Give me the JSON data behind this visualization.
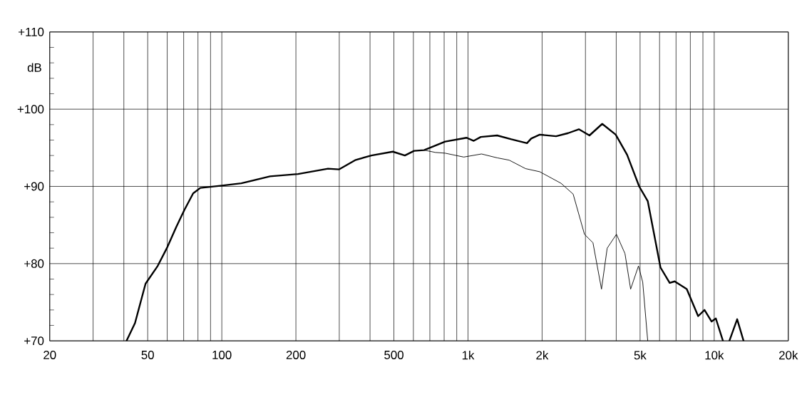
{
  "chart_data": {
    "type": "line",
    "ylabel": "dB",
    "log": "x",
    "grid": true,
    "marker": "none",
    "line_style": "solid",
    "xlim": [
      20,
      20000
    ],
    "ylim": [
      70,
      110
    ],
    "xticks": [
      20,
      {
        "value": 30,
        "label": null
      },
      {
        "value": 40,
        "label": null
      },
      50,
      {
        "value": 60,
        "label": null
      },
      {
        "value": 70,
        "label": null
      },
      {
        "value": 80,
        "label": null
      },
      {
        "value": 90,
        "label": null
      },
      100,
      200,
      {
        "value": 300,
        "label": null
      },
      {
        "value": 400,
        "label": null
      },
      500,
      {
        "value": 600,
        "label": null
      },
      {
        "value": 700,
        "label": null
      },
      {
        "value": 800,
        "label": null
      },
      {
        "value": 900,
        "label": null
      },
      {
        "value": 1000,
        "label": "1k"
      },
      {
        "value": 2000,
        "label": "2k"
      },
      {
        "value": 3000,
        "label": null
      },
      {
        "value": 4000,
        "label": null
      },
      {
        "value": 5000,
        "label": "5k"
      },
      {
        "value": 6000,
        "label": null
      },
      {
        "value": 7000,
        "label": null
      },
      {
        "value": 8000,
        "label": null
      },
      {
        "value": 9000,
        "label": null
      },
      {
        "value": 10000,
        "label": "10k"
      },
      {
        "value": 20000,
        "label": "20k"
      }
    ],
    "yticks": [
      {
        "value": 70,
        "label": "+70"
      },
      {
        "value": 72,
        "label": null
      },
      {
        "value": 74,
        "label": null
      },
      {
        "value": 76,
        "label": null
      },
      {
        "value": 78,
        "label": null
      },
      {
        "value": 80,
        "label": "+80"
      },
      {
        "value": 82,
        "label": null
      },
      {
        "value": 84,
        "label": null
      },
      {
        "value": 86,
        "label": null
      },
      {
        "value": 88,
        "label": null
      },
      {
        "value": 90,
        "label": "+90"
      },
      {
        "value": 92,
        "label": null
      },
      {
        "value": 94,
        "label": null
      },
      {
        "value": 96,
        "label": null
      },
      {
        "value": 98,
        "label": null
      },
      {
        "value": 100,
        "label": "+100"
      },
      {
        "value": 102,
        "label": null
      },
      {
        "value": 104,
        "label": null
      },
      {
        "value": 106,
        "label": null
      },
      {
        "value": 108,
        "label": null
      },
      {
        "value": 110,
        "label": "+110"
      }
    ],
    "series": [
      {
        "color": "#000000",
        "x": [
          41,
          44.4,
          49,
          54.9,
          59.8,
          65.2,
          70.6,
          76.5,
          81.8,
          100,
          120,
          157,
          204,
          270,
          299,
          348,
          405,
          495,
          554,
          604,
          663,
          808,
          987,
          1055,
          1127,
          1313,
          1500,
          1736,
          1806,
          1956,
          2279,
          2552,
          2820,
          3114,
          3509,
          3981,
          4428,
          4958,
          5371,
          6052,
          6596,
          6912,
          7737,
          8606,
          9135,
          9761,
          10155,
          10853,
          11100,
          11526,
          12398,
          13160
        ],
        "values": [
          70,
          72.3,
          77.4,
          79.7,
          82,
          84.7,
          87,
          89.1,
          89.8,
          90.1,
          90.4,
          91.3,
          91.6,
          92.3,
          92.2,
          93.4,
          94,
          94.5,
          94,
          94.6,
          94.7,
          95.8,
          96.3,
          95.9,
          96.4,
          96.6,
          96.1,
          95.6,
          96.2,
          96.7,
          96.5,
          96.9,
          97.4,
          96.6,
          98.1,
          96.7,
          94.1,
          90,
          88.1,
          79.5,
          77.5,
          77.7,
          76.7,
          73.2,
          74,
          72.5,
          72.9,
          70,
          null,
          70,
          72.8,
          70
        ]
      },
      {
        "color": "#000000",
        "x": [
          663,
          737,
          808,
          961,
          1135,
          1313,
          1470,
          1713,
          1956,
          2388,
          2674,
          2972,
          3218,
          3486,
          3676,
          4008,
          4341,
          4577,
          4926,
          5125,
          5371
        ],
        "values": [
          94.7,
          94.4,
          94.3,
          93.8,
          94.2,
          93.7,
          93.4,
          92.3,
          91.9,
          90.4,
          89,
          83.8,
          82.7,
          76.7,
          82,
          83.8,
          81.3,
          76.7,
          79.7,
          77.6,
          70
        ]
      }
    ]
  }
}
